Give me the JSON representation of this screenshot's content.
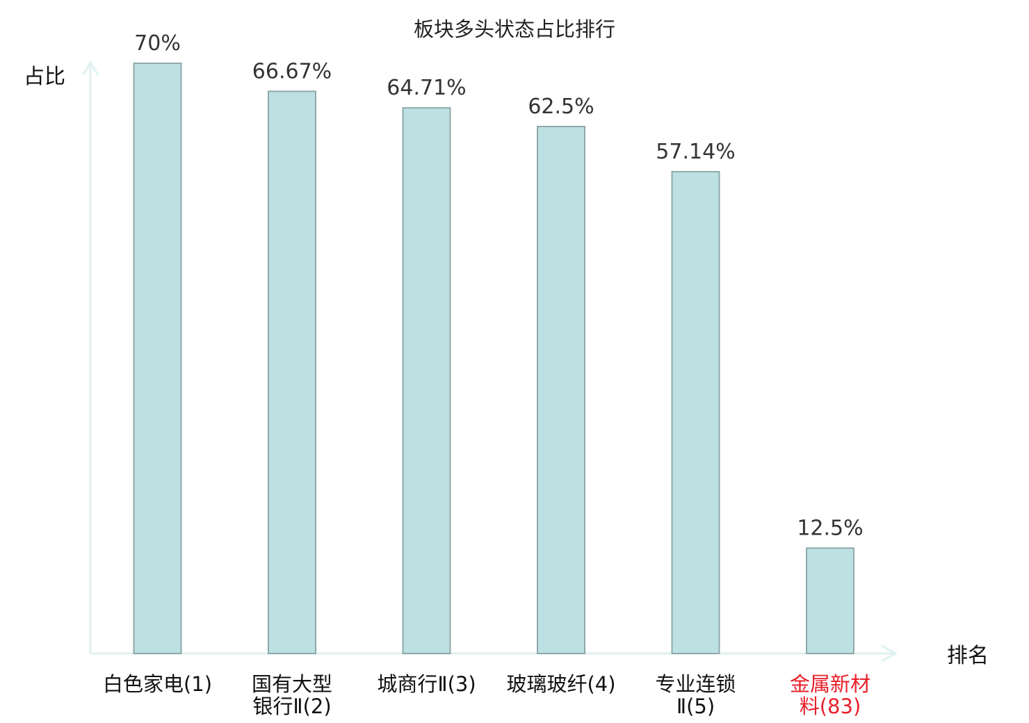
{
  "chart_data": {
    "type": "bar",
    "title": "板块多头状态占比排行",
    "ylabel": "占比",
    "xlabel": "排名",
    "categories": [
      {
        "lines": [
          "白色家电(1)"
        ],
        "highlight": false
      },
      {
        "lines": [
          "国有大型",
          "银行Ⅱ(2)"
        ],
        "highlight": false
      },
      {
        "lines": [
          "城商行Ⅱ(3)"
        ],
        "highlight": false
      },
      {
        "lines": [
          "玻璃玻纤(4)"
        ],
        "highlight": false
      },
      {
        "lines": [
          "专业连锁",
          "Ⅱ(5)"
        ],
        "highlight": false
      },
      {
        "lines": [
          "金属新材",
          "料(83)"
        ],
        "highlight": true
      }
    ],
    "values": [
      70,
      66.67,
      64.71,
      62.5,
      57.14,
      12.5
    ],
    "value_labels": [
      "70%",
      "66.67%",
      "64.71%",
      "62.5%",
      "57.14%",
      "12.5%"
    ],
    "ylim": [
      0,
      70
    ],
    "grid": false,
    "colors": {
      "bar_fill": "#bde1e3",
      "bar_stroke": "#8fa8aa",
      "axis": "#dff2ef",
      "category_text": "#111111",
      "highlight_text": "#e8202a"
    }
  }
}
